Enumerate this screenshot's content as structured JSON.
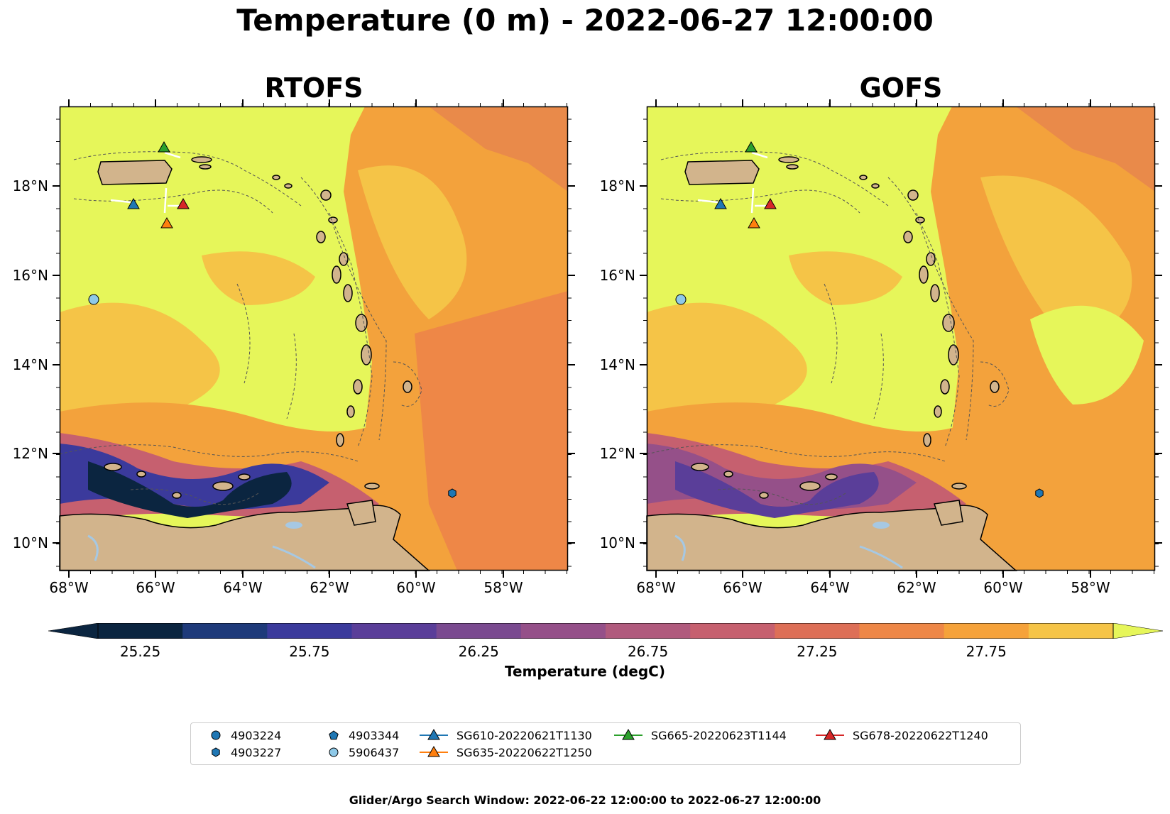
{
  "title": "Temperature (0 m) - 2022-06-27 12:00:00",
  "maps": [
    {
      "name": "RTOFS",
      "variant": "rtofs"
    },
    {
      "name": "GOFS",
      "variant": "gofs"
    }
  ],
  "lat_ticks": [
    "18°N",
    "16°N",
    "14°N",
    "12°N",
    "10°N"
  ],
  "lon_ticks": [
    "68°W",
    "66°W",
    "64°W",
    "62°W",
    "60°W",
    "58°W"
  ],
  "colorbar": {
    "label": "Temperature (degC)",
    "ticks": [
      "25.25",
      "25.75",
      "26.25",
      "26.75",
      "27.25",
      "27.75"
    ],
    "colors": [
      "#0b2540",
      "#1e3a7a",
      "#3b3a9c",
      "#5a3e99",
      "#7a4a90",
      "#955089",
      "#b05a7d",
      "#c6606f",
      "#dd6f57",
      "#ee8747",
      "#f5a23a",
      "#f5c447"
    ],
    "extend_low": "#0b2540",
    "extend_high": "#e6f65a"
  },
  "colors": {
    "land": "#d2b48c",
    "lake": "#a6c8e3",
    "warm_max": "#e6f65a"
  },
  "legend": [
    {
      "label": "4903224",
      "marker": "circle",
      "color": "#1f77b4"
    },
    {
      "label": "4903227",
      "marker": "hexagon",
      "color": "#1f77b4"
    },
    {
      "label": "4903344",
      "marker": "pentagon",
      "color": "#1f77b4"
    },
    {
      "label": "5906437",
      "marker": "circle",
      "color": "#8ec9e8"
    },
    {
      "label": "SG610-20220621T1130",
      "marker": "triangle",
      "color": "#1f77b4"
    },
    {
      "label": "SG635-20220622T1250",
      "marker": "triangle",
      "color": "#ff7f0e"
    },
    {
      "label": "SG665-20220623T1144",
      "marker": "triangle",
      "color": "#2ca02c"
    },
    {
      "label": "SG678-20220622T1240",
      "marker": "triangle",
      "color": "#d62728"
    }
  ],
  "footer": "Glider/Argo Search Window: 2022-06-22 12:00:00 to 2022-06-27 12:00:00"
}
